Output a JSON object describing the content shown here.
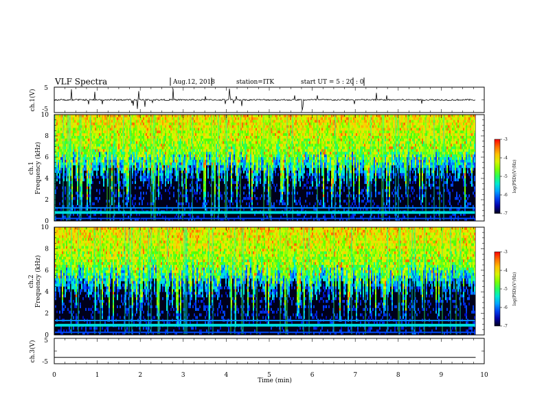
{
  "header": {
    "title": "VLF Spectra",
    "date": "Aug.12, 2018",
    "station": "station=ITK",
    "start": "start  UT  =   5 : 20 : 0"
  },
  "colors": {
    "spectrum_scale": [
      "#00001a",
      "#0000b4",
      "#0050ff",
      "#00c8ff",
      "#00ffb4",
      "#50ff00",
      "#c8ff00",
      "#ffd200",
      "#ff7800",
      "#ff0000",
      "#ffffff"
    ]
  },
  "chart_data": [
    {
      "type": "line",
      "panel": "ch1_waveform",
      "ylabel": "ch.1(V)",
      "ylim": [
        -5,
        5
      ],
      "yticks": [
        "5",
        "-5"
      ],
      "x_range": [
        0,
        9.8
      ],
      "baseline_level": 0,
      "description_values": {
        "noise_amplitude_V": 0.3,
        "spike_max_V": 5
      }
    },
    {
      "type": "heatmap",
      "panel": "ch1_spectrogram",
      "ylabel_line1": "ch.1",
      "ylabel_line2": "Frequency (kHz)",
      "ylim": [
        0,
        10
      ],
      "yticks": [
        "0",
        "2",
        "4",
        "6",
        "8",
        "10"
      ],
      "x_range": [
        0,
        9.8
      ],
      "colorbar": {
        "label": "log(PSD)(V²/Hz)",
        "range": [
          -7,
          -3
        ],
        "ticks": [
          "-3",
          "-4",
          "-5",
          "-6",
          "-7"
        ]
      },
      "features": {
        "background_band_kHz": [
          2,
          6
        ],
        "intense_band_kHz": [
          6,
          10
        ],
        "low_freq_line_kHz": 0.8
      }
    },
    {
      "type": "heatmap",
      "panel": "ch2_spectrogram",
      "ylabel_line1": "ch.2",
      "ylabel_line2": "Frequency (kHz)",
      "ylim": [
        0,
        10
      ],
      "yticks": [
        "0",
        "2",
        "4",
        "6",
        "8",
        "10"
      ],
      "x_range": [
        0,
        9.8
      ],
      "colorbar": {
        "label": "log(PSD)(V²/Hz)",
        "range": [
          -7,
          -3
        ],
        "ticks": [
          "-3",
          "-4",
          "-5",
          "-6",
          "-7"
        ]
      },
      "features": {
        "background_band_kHz": [
          2,
          6
        ],
        "intense_band_kHz": [
          6,
          10
        ],
        "low_freq_line_kHz": 0.9
      }
    },
    {
      "type": "line",
      "panel": "ch3_waveform",
      "ylabel": "ch.3(V)",
      "ylim": [
        -5,
        5
      ],
      "yticks": [
        "5",
        "-5"
      ],
      "x_range": [
        0,
        9.8
      ],
      "baseline_level": -2.5
    }
  ],
  "xaxis": {
    "label": "Time (min)",
    "ticks": [
      "0",
      "1",
      "2",
      "3",
      "4",
      "5",
      "6",
      "7",
      "8",
      "9",
      "10"
    ],
    "xlim": [
      0,
      10
    ]
  }
}
